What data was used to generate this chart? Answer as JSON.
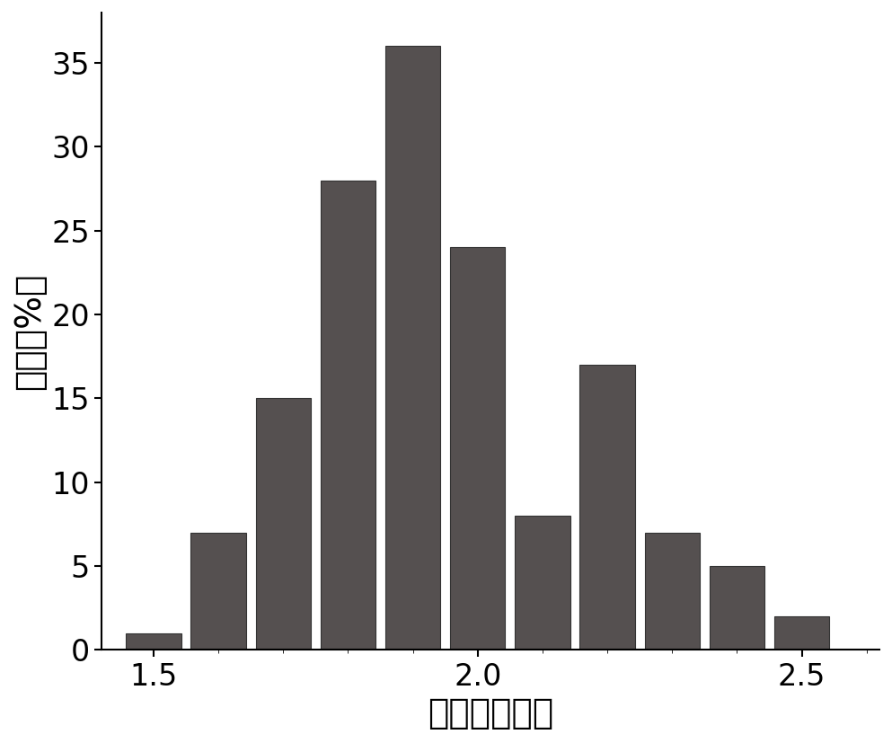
{
  "bar_centers": [
    1.5,
    1.6,
    1.7,
    1.8,
    1.9,
    2.0,
    2.1,
    2.2,
    2.3,
    2.4,
    2.5
  ],
  "bar_heights": [
    1,
    7,
    15,
    28,
    36,
    24,
    8,
    17,
    7,
    5,
    2
  ],
  "bar_width": 0.085,
  "bar_color": "#555050",
  "bar_edgecolor": "#333333",
  "bar_linewidth": 0.8,
  "xlabel": "直径（纳米）",
  "ylabel": "计数（%）",
  "xlim": [
    1.42,
    2.62
  ],
  "ylim": [
    0,
    38
  ],
  "xticks": [
    1.5,
    2.0,
    2.5
  ],
  "yticks": [
    0,
    5,
    10,
    15,
    20,
    25,
    30,
    35
  ],
  "xlabel_fontsize": 28,
  "ylabel_fontsize": 28,
  "tick_fontsize": 24,
  "background_color": "#ffffff",
  "figure_width": 9.93,
  "figure_height": 8.27,
  "dpi": 100
}
